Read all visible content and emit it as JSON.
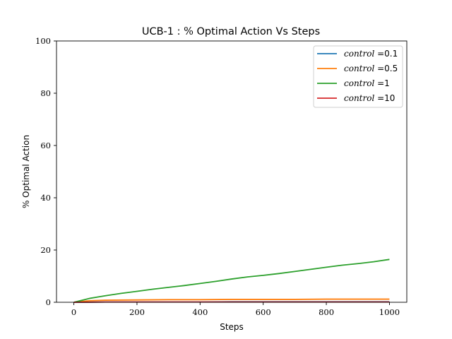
{
  "chart_data": {
    "type": "line",
    "title_main": "UCB-1 : ",
    "title_symbol": "%",
    "title_rest": " Optimal Action Vs Steps",
    "xlabel": "Steps",
    "ylabel_symbol": "%",
    "ylabel_rest": " Optimal Action",
    "xlim": [
      -55,
      1055
    ],
    "ylim": [
      0,
      100
    ],
    "x_ticks": [
      0,
      200,
      400,
      600,
      800,
      1000
    ],
    "x_tick_labels": [
      "0",
      "200",
      "400",
      "600",
      "800",
      "1000"
    ],
    "y_ticks": [
      0,
      20,
      40,
      60,
      80,
      100
    ],
    "y_tick_labels": [
      "0",
      "20",
      "40",
      "60",
      "80",
      "100"
    ],
    "grid": false,
    "legend_placement": "top-right",
    "legend_prefix": "control",
    "series": [
      {
        "name": "0.1",
        "legend_suffix": " =0.1",
        "color": "#1f77b4",
        "x": [
          0,
          100,
          200,
          300,
          400,
          500,
          600,
          700,
          800,
          900,
          1000
        ],
        "y": [
          0.0,
          0.1,
          0.1,
          0.1,
          0.1,
          0.2,
          0.2,
          0.2,
          0.2,
          0.2,
          0.2
        ]
      },
      {
        "name": "0.5",
        "legend_suffix": " =0.5",
        "color": "#ff7f0e",
        "x": [
          0,
          50,
          100,
          200,
          300,
          400,
          500,
          600,
          700,
          800,
          900,
          1000
        ],
        "y": [
          0.0,
          0.6,
          0.8,
          0.9,
          1.0,
          1.0,
          1.1,
          1.1,
          1.1,
          1.2,
          1.2,
          1.2
        ]
      },
      {
        "name": "1",
        "legend_suffix": " =1",
        "color": "#2ca02c",
        "x": [
          0,
          50,
          100,
          150,
          200,
          250,
          300,
          350,
          400,
          450,
          500,
          550,
          600,
          650,
          700,
          750,
          800,
          850,
          900,
          950,
          1000
        ],
        "y": [
          0.0,
          1.5,
          2.5,
          3.4,
          4.2,
          5.0,
          5.7,
          6.4,
          7.2,
          8.0,
          8.9,
          9.7,
          10.3,
          11.0,
          11.8,
          12.6,
          13.4,
          14.2,
          14.8,
          15.5,
          16.4
        ]
      },
      {
        "name": "10",
        "legend_suffix": " =10",
        "color": "#d62728",
        "x": [
          0,
          100,
          200,
          300,
          400,
          500,
          600,
          700,
          800,
          900,
          1000
        ],
        "y": [
          0.0,
          0.1,
          0.1,
          0.1,
          0.1,
          0.1,
          0.1,
          0.1,
          0.1,
          0.1,
          0.1
        ]
      }
    ]
  }
}
